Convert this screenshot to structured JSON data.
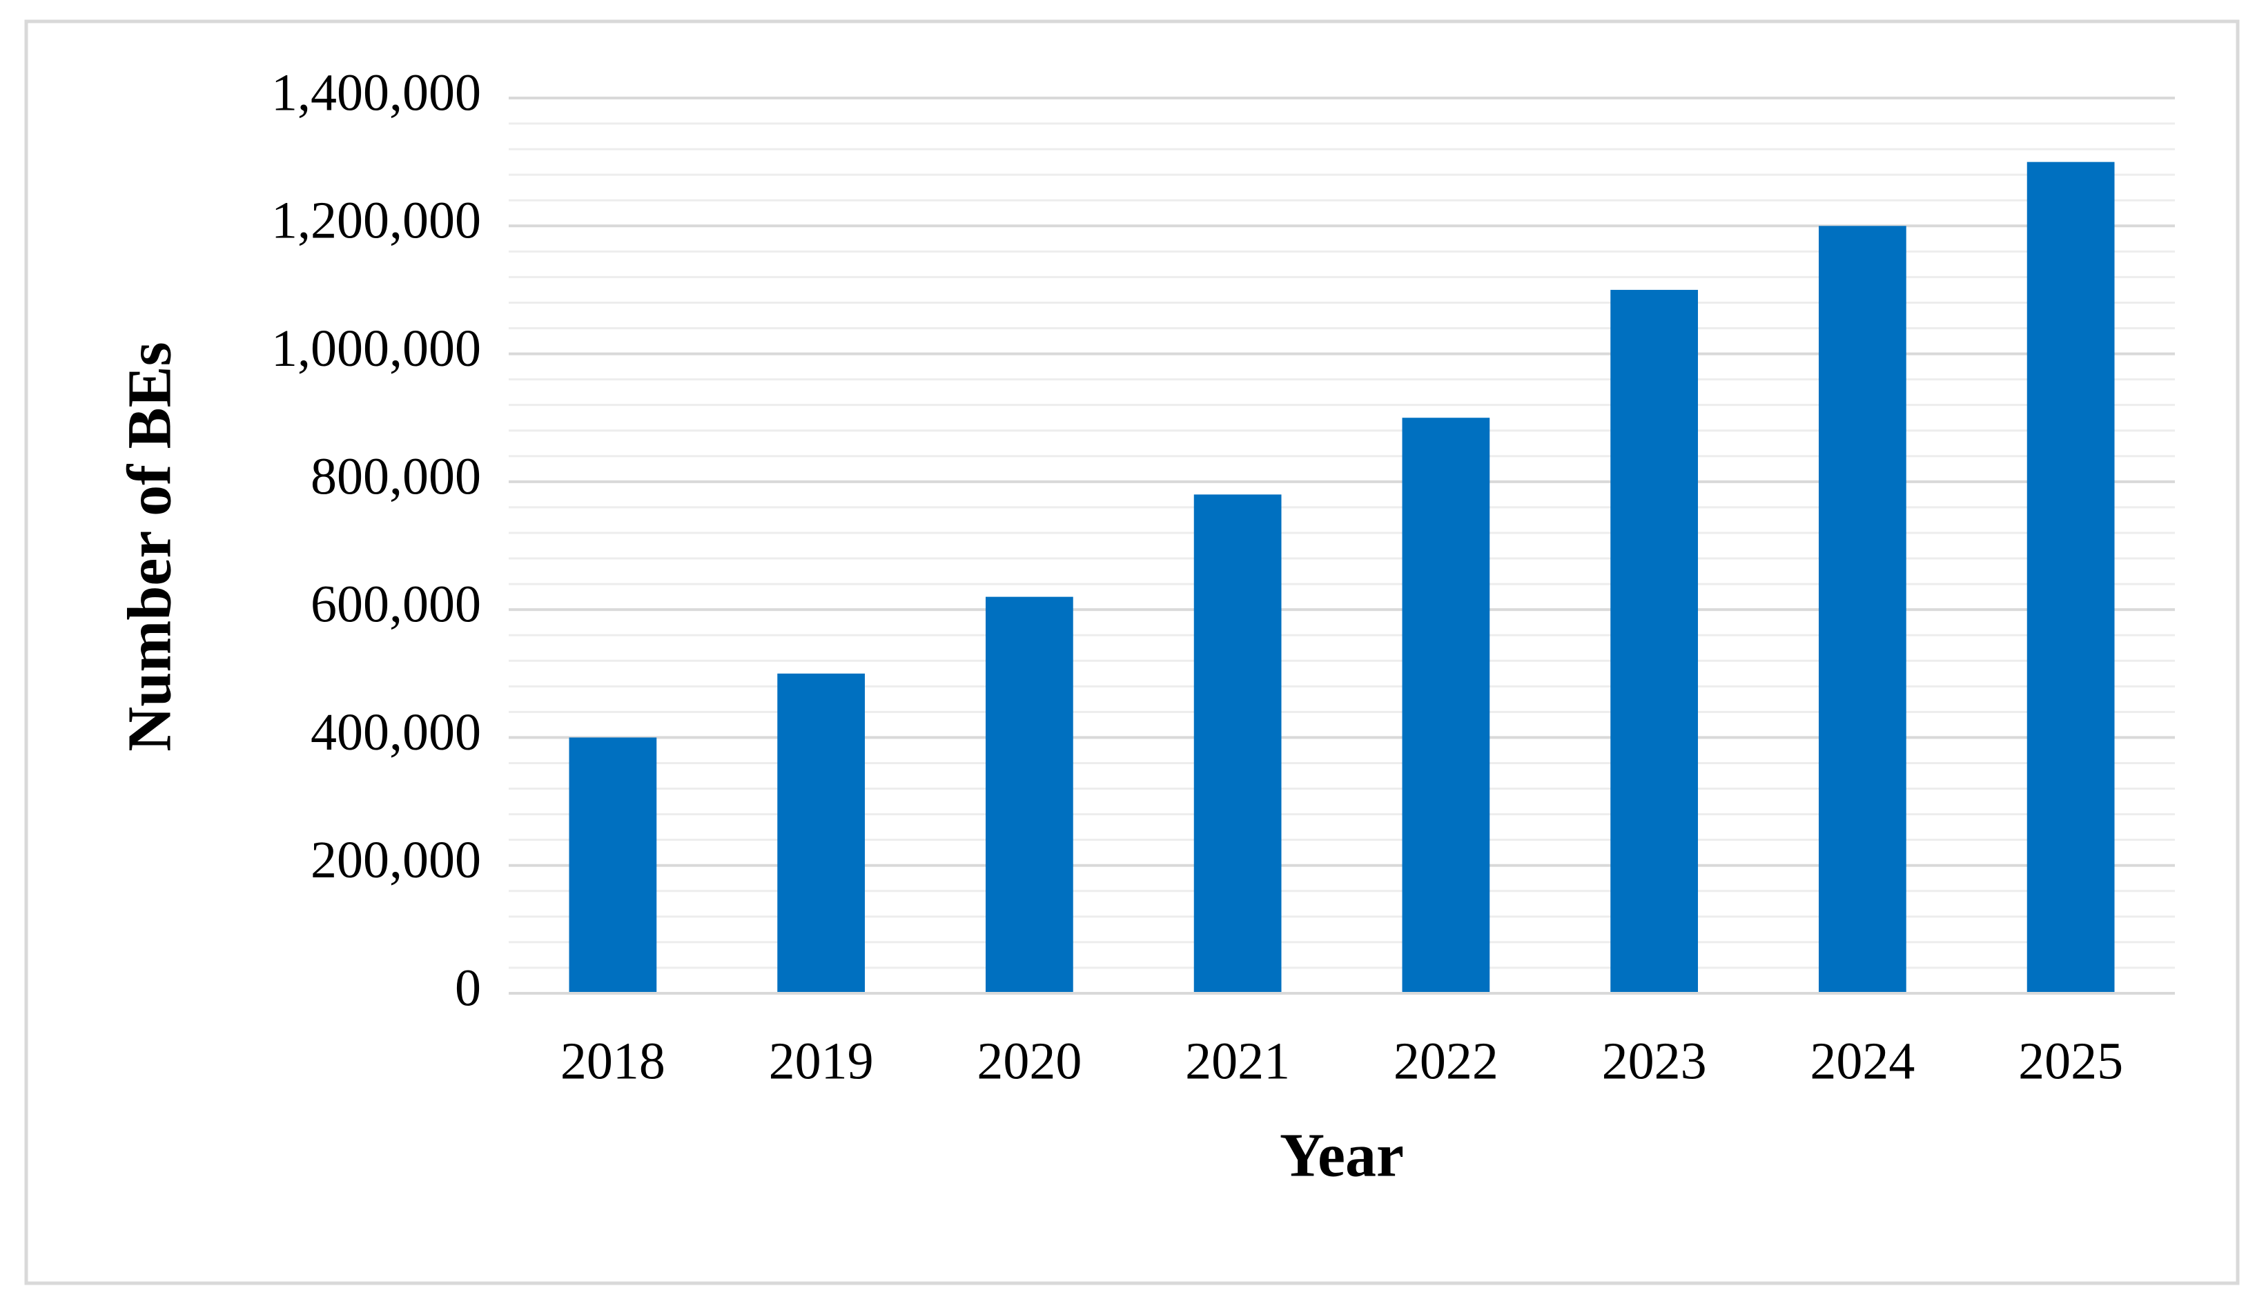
{
  "chart_data": {
    "type": "bar",
    "x_label": "Year",
    "y_label": "Number of BEs",
    "categories": [
      "2018",
      "2019",
      "2020",
      "2021",
      "2022",
      "2023",
      "2024",
      "2025"
    ],
    "values": [
      400000,
      500000,
      620000,
      780000,
      900000,
      1100000,
      1200000,
      1300000
    ],
    "color": "#0070c0",
    "ylim": [
      0,
      1400000
    ],
    "yticks": [
      0,
      {
        "value": 200000,
        "label": "200,000"
      },
      {
        "value": 400000,
        "label": "400,000"
      },
      {
        "value": 600000,
        "label": "600,000"
      },
      {
        "value": 800000,
        "label": "800,000"
      },
      {
        "value": 1000000,
        "label": "1,000,000"
      },
      {
        "value": 1200000,
        "label": "1,200,000"
      },
      {
        "value": 1400000,
        "label": "1,400,000"
      }
    ],
    "grid": true,
    "minor_grid": true
  }
}
